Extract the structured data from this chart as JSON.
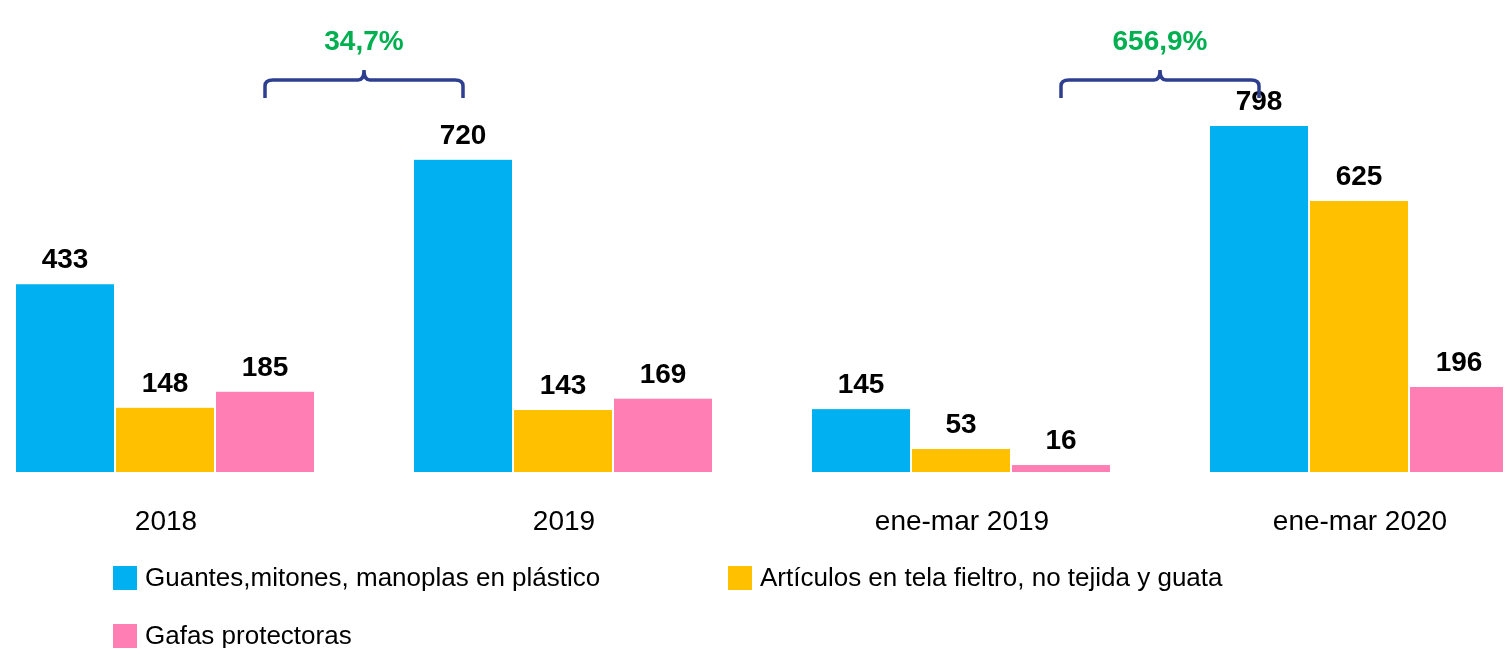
{
  "chart_data": {
    "type": "bar",
    "categories": [
      "2018",
      "2019",
      "ene-mar 2019",
      "ene-mar 2020"
    ],
    "series": [
      {
        "name": "Guantes,mitones, manoplas en plástico",
        "color": "#00b0f0",
        "values": [
          433,
          720,
          145,
          798
        ]
      },
      {
        "name": "Artículos en tela fieltro, no tejida y guata",
        "color": "#ffc000",
        "values": [
          148,
          143,
          53,
          625
        ]
      },
      {
        "name": "Gafas protectoras",
        "color": "#ff7eb3",
        "values": [
          185,
          169,
          16,
          196
        ]
      }
    ],
    "data_labels": true,
    "legend": "bottom",
    "annotations": [
      "34,7%",
      "656,9%"
    ]
  }
}
